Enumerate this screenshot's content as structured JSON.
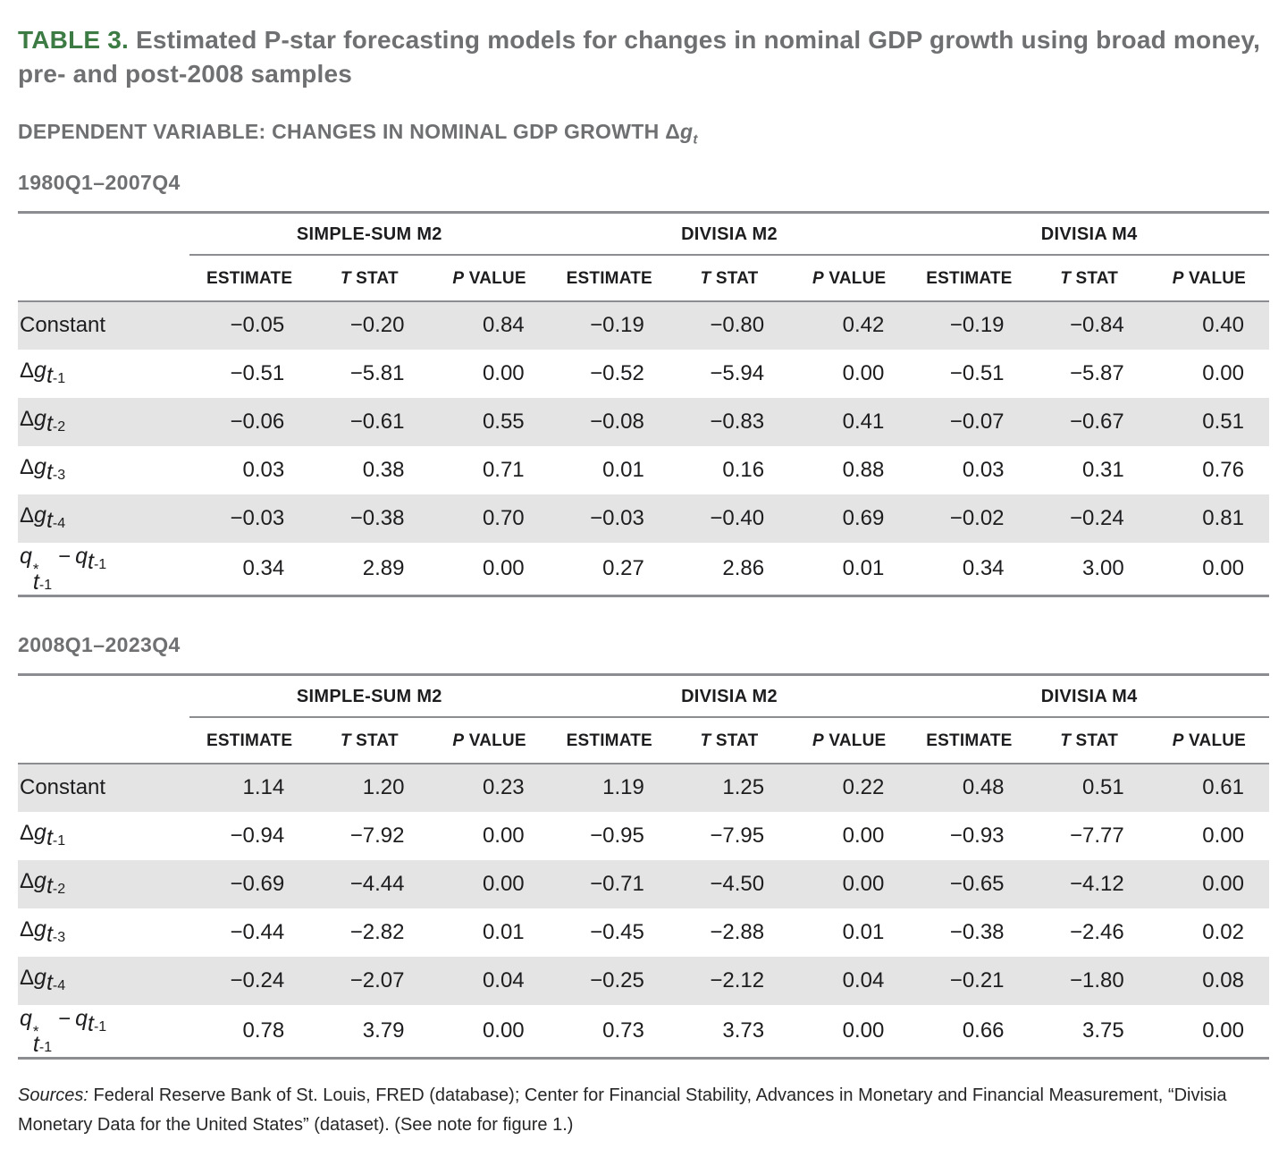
{
  "colors": {
    "accent_green": "#3d7b44",
    "heading_gray": "#6f7072",
    "text_black": "#1d1d1f",
    "row_shade": "#e4e4e4",
    "rule_gray": "#8c8d90"
  },
  "title": {
    "label": "TABLE 3.",
    "text": " Estimated P-star forecasting models for changes in nominal GDP growth using broad money, pre- and post-2008 samples"
  },
  "dependent_variable": {
    "text": "DEPENDENT VARIABLE: CHANGES IN NOMINAL GDP GROWTH ",
    "symbol": {
      "delta": "Δ",
      "var": "g",
      "sub": "t"
    }
  },
  "tables": [
    {
      "period": "1980Q1–2007Q4",
      "groups": [
        "SIMPLE-SUM M2",
        "DIVISIA M2",
        "DIVISIA M4"
      ],
      "col_headers": [
        {
          "italic": "",
          "text": "ESTIMATE"
        },
        {
          "italic": "T",
          "text": " STAT"
        },
        {
          "italic": "P",
          "text": " VALUE"
        }
      ],
      "rows": [
        {
          "label": {
            "kind": "text",
            "text": "Constant"
          },
          "values": [
            "−0.05",
            "−0.20",
            "0.84",
            "−0.19",
            "−0.80",
            "0.42",
            "−0.19",
            "−0.84",
            "0.40"
          ]
        },
        {
          "label": {
            "kind": "dg",
            "delta": "Δ",
            "var": "g",
            "sub": "t-1"
          },
          "values": [
            "−0.51",
            "−5.81",
            "0.00",
            "−0.52",
            "−5.94",
            "0.00",
            "−0.51",
            "−5.87",
            "0.00"
          ]
        },
        {
          "label": {
            "kind": "dg",
            "delta": "Δ",
            "var": "g",
            "sub": "t-2"
          },
          "values": [
            "−0.06",
            "−0.61",
            "0.55",
            "−0.08",
            "−0.83",
            "0.41",
            "−0.07",
            "−0.67",
            "0.51"
          ]
        },
        {
          "label": {
            "kind": "dg",
            "delta": "Δ",
            "var": "g",
            "sub": "t-3"
          },
          "values": [
            "0.03",
            "0.38",
            "0.71",
            "0.01",
            "0.16",
            "0.88",
            "0.03",
            "0.31",
            "0.76"
          ]
        },
        {
          "label": {
            "kind": "dg",
            "delta": "Δ",
            "var": "g",
            "sub": "t-4"
          },
          "values": [
            "−0.03",
            "−0.38",
            "0.70",
            "−0.03",
            "−0.40",
            "0.69",
            "−0.02",
            "−0.24",
            "0.81"
          ]
        },
        {
          "label": {
            "kind": "qdiff",
            "var": "q",
            "star": "*",
            "sub": "t-1",
            "operator": "−"
          },
          "values": [
            "0.34",
            "2.89",
            "0.00",
            "0.27",
            "2.86",
            "0.01",
            "0.34",
            "3.00",
            "0.00"
          ]
        }
      ]
    },
    {
      "period": "2008Q1–2023Q4",
      "groups": [
        "SIMPLE-SUM M2",
        "DIVISIA M2",
        "DIVISIA M4"
      ],
      "col_headers": [
        {
          "italic": "",
          "text": "ESTIMATE"
        },
        {
          "italic": "T",
          "text": " STAT"
        },
        {
          "italic": "P",
          "text": " VALUE"
        }
      ],
      "rows": [
        {
          "label": {
            "kind": "text",
            "text": "Constant"
          },
          "values": [
            "1.14",
            "1.20",
            "0.23",
            "1.19",
            "1.25",
            "0.22",
            "0.48",
            "0.51",
            "0.61"
          ]
        },
        {
          "label": {
            "kind": "dg",
            "delta": "Δ",
            "var": "g",
            "sub": "t-1"
          },
          "values": [
            "−0.94",
            "−7.92",
            "0.00",
            "−0.95",
            "−7.95",
            "0.00",
            "−0.93",
            "−7.77",
            "0.00"
          ]
        },
        {
          "label": {
            "kind": "dg",
            "delta": "Δ",
            "var": "g",
            "sub": "t-2"
          },
          "values": [
            "−0.69",
            "−4.44",
            "0.00",
            "−0.71",
            "−4.50",
            "0.00",
            "−0.65",
            "−4.12",
            "0.00"
          ]
        },
        {
          "label": {
            "kind": "dg",
            "delta": "Δ",
            "var": "g",
            "sub": "t-3"
          },
          "values": [
            "−0.44",
            "−2.82",
            "0.01",
            "−0.45",
            "−2.88",
            "0.01",
            "−0.38",
            "−2.46",
            "0.02"
          ]
        },
        {
          "label": {
            "kind": "dg",
            "delta": "Δ",
            "var": "g",
            "sub": "t-4"
          },
          "values": [
            "−0.24",
            "−2.07",
            "0.04",
            "−0.25",
            "−2.12",
            "0.04",
            "−0.21",
            "−1.80",
            "0.08"
          ]
        },
        {
          "label": {
            "kind": "qdiff",
            "var": "q",
            "star": "*",
            "sub": "t-1",
            "operator": "−"
          },
          "values": [
            "0.78",
            "3.79",
            "0.00",
            "0.73",
            "3.73",
            "0.00",
            "0.66",
            "3.75",
            "0.00"
          ]
        }
      ]
    }
  ],
  "sources": {
    "label": "Sources:",
    "text": " Federal Reserve Bank of St. Louis, FRED (database); Center for Financial Stability, Advances in Monetary and Financial Measurement, “Divisia Monetary Data for the United States” (dataset). (See note for figure 1.)"
  }
}
